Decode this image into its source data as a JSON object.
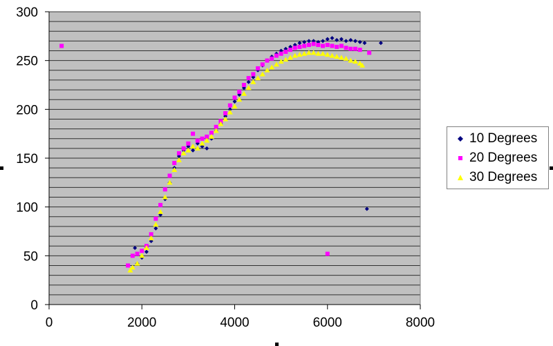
{
  "chart_data": {
    "type": "scatter",
    "title": "",
    "xlabel": "",
    "ylabel": "",
    "xlim": [
      0,
      8000
    ],
    "ylim": [
      0,
      300
    ],
    "x_ticks": [
      "0",
      "2000",
      "4000",
      "6000",
      "8000"
    ],
    "y_ticks": [
      "0",
      "50",
      "100",
      "150",
      "200",
      "250",
      "300"
    ],
    "grid": "horizontal every 10",
    "legend_position": "right",
    "plot_background": "#c0c0c0",
    "series": [
      {
        "name": "10 Degrees",
        "color": "#000080",
        "marker": "diamond",
        "points": [
          [
            1850,
            58
          ],
          [
            1900,
            42
          ],
          [
            2000,
            48
          ],
          [
            2100,
            54
          ],
          [
            2200,
            65
          ],
          [
            2300,
            78
          ],
          [
            2400,
            92
          ],
          [
            2500,
            108
          ],
          [
            2600,
            125
          ],
          [
            2700,
            140
          ],
          [
            2800,
            152
          ],
          [
            2900,
            158
          ],
          [
            3000,
            162
          ],
          [
            3100,
            158
          ],
          [
            3200,
            165
          ],
          [
            3300,
            162
          ],
          [
            3400,
            160
          ],
          [
            3500,
            170
          ],
          [
            3600,
            178
          ],
          [
            3700,
            185
          ],
          [
            3800,
            193
          ],
          [
            3900,
            200
          ],
          [
            4000,
            208
          ],
          [
            4100,
            215
          ],
          [
            4200,
            222
          ],
          [
            4300,
            228
          ],
          [
            4400,
            233
          ],
          [
            4500,
            240
          ],
          [
            4600,
            245
          ],
          [
            4700,
            250
          ],
          [
            4800,
            254
          ],
          [
            4900,
            257
          ],
          [
            5000,
            260
          ],
          [
            5100,
            262
          ],
          [
            5200,
            264
          ],
          [
            5300,
            266
          ],
          [
            5400,
            268
          ],
          [
            5500,
            269
          ],
          [
            5600,
            270
          ],
          [
            5700,
            270
          ],
          [
            5800,
            269
          ],
          [
            5900,
            270
          ],
          [
            6000,
            272
          ],
          [
            6100,
            273
          ],
          [
            6200,
            271
          ],
          [
            6300,
            272
          ],
          [
            6400,
            270
          ],
          [
            6500,
            271
          ],
          [
            6600,
            270
          ],
          [
            6700,
            269
          ],
          [
            6800,
            268
          ],
          [
            7150,
            268
          ],
          [
            6850,
            98
          ]
        ]
      },
      {
        "name": "20 Degrees",
        "color": "#ff00ff",
        "marker": "square",
        "points": [
          [
            270,
            265
          ],
          [
            1700,
            40
          ],
          [
            1800,
            50
          ],
          [
            1900,
            52
          ],
          [
            2000,
            55
          ],
          [
            2100,
            60
          ],
          [
            2200,
            72
          ],
          [
            2300,
            88
          ],
          [
            2400,
            102
          ],
          [
            2500,
            118
          ],
          [
            2600,
            132
          ],
          [
            2700,
            145
          ],
          [
            2800,
            155
          ],
          [
            2900,
            160
          ],
          [
            3000,
            165
          ],
          [
            3100,
            175
          ],
          [
            3200,
            168
          ],
          [
            3300,
            170
          ],
          [
            3400,
            172
          ],
          [
            3500,
            176
          ],
          [
            3600,
            182
          ],
          [
            3700,
            188
          ],
          [
            3800,
            196
          ],
          [
            3900,
            204
          ],
          [
            4000,
            212
          ],
          [
            4100,
            218
          ],
          [
            4200,
            225
          ],
          [
            4300,
            232
          ],
          [
            4400,
            236
          ],
          [
            4500,
            242
          ],
          [
            4600,
            246
          ],
          [
            4700,
            250
          ],
          [
            4800,
            252
          ],
          [
            4900,
            255
          ],
          [
            5000,
            257
          ],
          [
            5100,
            259
          ],
          [
            5200,
            261
          ],
          [
            5300,
            263
          ],
          [
            5400,
            264
          ],
          [
            5500,
            265
          ],
          [
            5600,
            266
          ],
          [
            5700,
            267
          ],
          [
            5800,
            266
          ],
          [
            5900,
            265
          ],
          [
            6000,
            266
          ],
          [
            6100,
            265
          ],
          [
            6200,
            264
          ],
          [
            6300,
            265
          ],
          [
            6400,
            263
          ],
          [
            6500,
            262
          ],
          [
            6600,
            262
          ],
          [
            6700,
            261
          ],
          [
            6900,
            258
          ],
          [
            6000,
            52
          ]
        ]
      },
      {
        "name": "30 Degrees",
        "color": "#ffff00",
        "marker": "triangle",
        "points": [
          [
            1750,
            35
          ],
          [
            1800,
            38
          ],
          [
            1900,
            42
          ],
          [
            2000,
            50
          ],
          [
            2100,
            58
          ],
          [
            2200,
            68
          ],
          [
            2300,
            82
          ],
          [
            2400,
            95
          ],
          [
            2500,
            110
          ],
          [
            2600,
            125
          ],
          [
            2700,
            138
          ],
          [
            2800,
            148
          ],
          [
            2900,
            155
          ],
          [
            3000,
            158
          ],
          [
            3100,
            162
          ],
          [
            3200,
            160
          ],
          [
            3300,
            165
          ],
          [
            3400,
            168
          ],
          [
            3500,
            172
          ],
          [
            3600,
            178
          ],
          [
            3700,
            185
          ],
          [
            3800,
            190
          ],
          [
            3900,
            197
          ],
          [
            4000,
            203
          ],
          [
            4100,
            210
          ],
          [
            4200,
            216
          ],
          [
            4300,
            222
          ],
          [
            4400,
            228
          ],
          [
            4500,
            232
          ],
          [
            4600,
            236
          ],
          [
            4700,
            240
          ],
          [
            4800,
            243
          ],
          [
            4900,
            246
          ],
          [
            5000,
            249
          ],
          [
            5100,
            251
          ],
          [
            5200,
            253
          ],
          [
            5300,
            255
          ],
          [
            5400,
            256
          ],
          [
            5500,
            257
          ],
          [
            5600,
            258
          ],
          [
            5700,
            258
          ],
          [
            5800,
            257
          ],
          [
            5900,
            257
          ],
          [
            6000,
            256
          ],
          [
            6100,
            255
          ],
          [
            6200,
            254
          ],
          [
            6300,
            253
          ],
          [
            6400,
            252
          ],
          [
            6500,
            250
          ],
          [
            6600,
            249
          ],
          [
            6700,
            247
          ],
          [
            6750,
            245
          ]
        ]
      }
    ]
  },
  "legend": {
    "items": [
      {
        "label": "10 Degrees"
      },
      {
        "label": "20 Degrees"
      },
      {
        "label": "30 Degrees"
      }
    ]
  }
}
